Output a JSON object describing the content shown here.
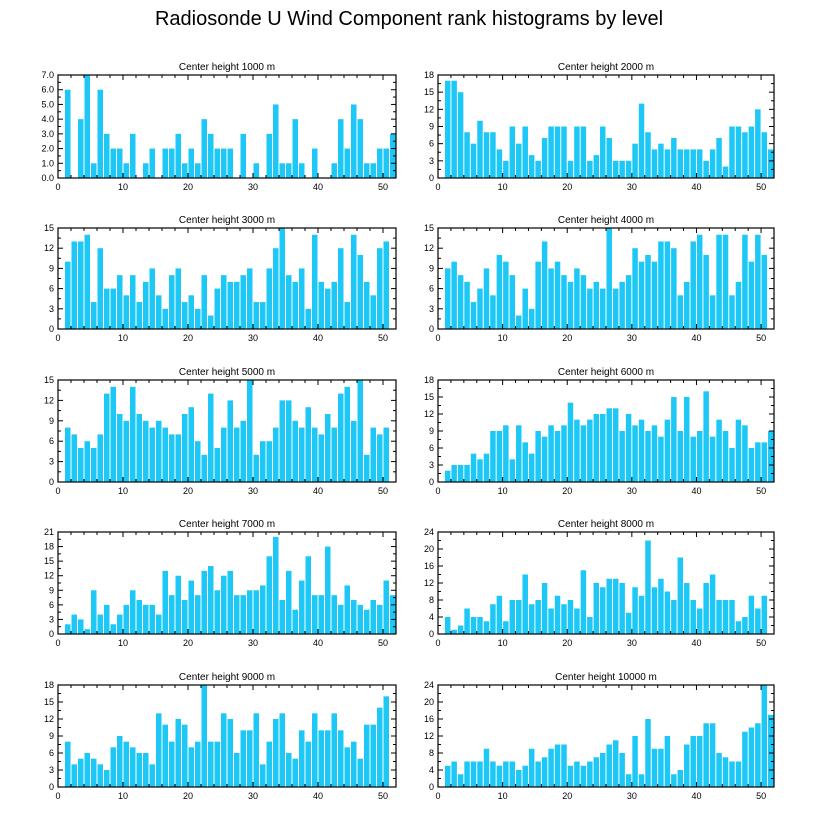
{
  "title": "Radiosonde U Wind Component rank histograms by level",
  "bar_color": "#1ec8f6",
  "chart_data": [
    {
      "type": "bar",
      "title": "Center height 1000 m",
      "xlim": [
        0,
        52
      ],
      "ylim": [
        0,
        7
      ],
      "yticks": [
        0,
        1,
        2,
        3,
        4,
        5,
        6,
        7
      ],
      "ytick_labels": [
        "0.0",
        "1.0",
        "2.0",
        "3.0",
        "4.0",
        "5.0",
        "6.0",
        "7.0"
      ],
      "xticks": [
        0,
        10,
        20,
        30,
        40,
        50
      ],
      "x": [
        0,
        1,
        2,
        3,
        4,
        5,
        6,
        7,
        8,
        9,
        10,
        11,
        12,
        13,
        14,
        15,
        16,
        17,
        18,
        19,
        20,
        21,
        22,
        23,
        24,
        25,
        26,
        27,
        28,
        29,
        30,
        31,
        32,
        33,
        34,
        35,
        36,
        37,
        38,
        39,
        40,
        41,
        42,
        43,
        44,
        45,
        46,
        47,
        48,
        49,
        50,
        51
      ],
      "values": [
        0,
        6,
        0,
        4,
        7,
        1,
        6,
        3,
        2,
        2,
        1,
        3,
        0,
        1,
        2,
        0,
        2,
        2,
        3,
        1,
        2,
        1,
        4,
        3,
        2,
        2,
        2,
        0,
        3,
        0,
        1,
        0,
        3,
        5,
        1,
        1,
        4,
        1,
        0,
        2,
        0,
        0,
        1,
        4,
        2,
        5,
        4,
        1,
        1,
        2,
        2,
        3
      ]
    },
    {
      "type": "bar",
      "title": "Center height 2000 m",
      "xlim": [
        0,
        52
      ],
      "ylim": [
        0,
        18
      ],
      "yticks": [
        0,
        3,
        6,
        9,
        12,
        15,
        18
      ],
      "ytick_labels": [
        "0",
        "3",
        "6",
        "9",
        "12",
        "15",
        "18"
      ],
      "xticks": [
        0,
        10,
        20,
        30,
        40,
        50
      ],
      "values": [
        0,
        17,
        17,
        15,
        8,
        6,
        10,
        8,
        8,
        5,
        3,
        9,
        6,
        9,
        4,
        3,
        7,
        9,
        9,
        9,
        3,
        9,
        9,
        3,
        4,
        9,
        7,
        3,
        3,
        3,
        6,
        13,
        8,
        5,
        6,
        5,
        7,
        5,
        5,
        5,
        5,
        3,
        5,
        7,
        2,
        9,
        9,
        8,
        9,
        12,
        8,
        5
      ]
    },
    {
      "type": "bar",
      "title": "Center height 3000 m",
      "xlim": [
        0,
        52
      ],
      "ylim": [
        0,
        15
      ],
      "yticks": [
        0,
        3,
        6,
        9,
        12,
        15
      ],
      "ytick_labels": [
        "0",
        "3",
        "6",
        "9",
        "12",
        "15"
      ],
      "xticks": [
        0,
        10,
        20,
        30,
        40,
        50
      ],
      "values": [
        0,
        10,
        13,
        13,
        14,
        4,
        12,
        6,
        6,
        8,
        5,
        8,
        4,
        7,
        9,
        5,
        3,
        8,
        9,
        4,
        5,
        3,
        8,
        2,
        6,
        8,
        7,
        7,
        8,
        9,
        4,
        4,
        9,
        12,
        15,
        8,
        7,
        9,
        3,
        14,
        7,
        6,
        7,
        12,
        4,
        14,
        11,
        7,
        5,
        12,
        13,
        0
      ]
    },
    {
      "type": "bar",
      "title": "Center height 4000 m",
      "xlim": [
        0,
        52
      ],
      "ylim": [
        0,
        15
      ],
      "yticks": [
        0,
        3,
        6,
        9,
        12,
        15
      ],
      "ytick_labels": [
        "0",
        "3",
        "6",
        "9",
        "12",
        "15"
      ],
      "xticks": [
        0,
        10,
        20,
        30,
        40,
        50
      ],
      "values": [
        0,
        9,
        10,
        8,
        7,
        4,
        6,
        9,
        5,
        11,
        10,
        8,
        2,
        6,
        3,
        10,
        13,
        9,
        10,
        8,
        7,
        9,
        8,
        6,
        7,
        6,
        15,
        6,
        7,
        8,
        12,
        10,
        11,
        10,
        13,
        13,
        12,
        5,
        7,
        13,
        14,
        11,
        5,
        14,
        14,
        5,
        7,
        14,
        10,
        14,
        11,
        0
      ]
    },
    {
      "type": "bar",
      "title": "Center height 5000 m",
      "xlim": [
        0,
        52
      ],
      "ylim": [
        0,
        15
      ],
      "yticks": [
        0,
        3,
        6,
        9,
        12,
        15
      ],
      "ytick_labels": [
        "0",
        "3",
        "6",
        "9",
        "12",
        "15"
      ],
      "xticks": [
        0,
        10,
        20,
        30,
        40,
        50
      ],
      "values": [
        0,
        8,
        7,
        5,
        6,
        5,
        7,
        13,
        14,
        10,
        9,
        14,
        10,
        9,
        8,
        9,
        8,
        7,
        7,
        10,
        11,
        6,
        4,
        13,
        5,
        8,
        12,
        8,
        9,
        15,
        4,
        6,
        6,
        8,
        12,
        12,
        9,
        8,
        11,
        8,
        7,
        10,
        8,
        13,
        14,
        9,
        15,
        4,
        8,
        7,
        8,
        0
      ]
    },
    {
      "type": "bar",
      "title": "Center height 6000 m",
      "xlim": [
        0,
        52
      ],
      "ylim": [
        0,
        18
      ],
      "yticks": [
        0,
        3,
        6,
        9,
        12,
        15,
        18
      ],
      "ytick_labels": [
        "0",
        "3",
        "6",
        "9",
        "12",
        "15",
        "18"
      ],
      "xticks": [
        0,
        10,
        20,
        30,
        40,
        50
      ],
      "values": [
        0,
        2,
        3,
        3,
        3,
        5,
        4,
        5,
        9,
        9,
        10,
        4,
        10,
        7,
        5,
        9,
        8,
        10,
        9,
        10,
        14,
        11,
        10,
        11,
        12,
        12,
        13,
        13,
        9,
        12,
        10,
        11,
        9,
        10,
        8,
        11,
        15,
        9,
        15,
        8,
        9,
        16,
        8,
        11,
        9,
        6,
        11,
        10,
        6,
        7,
        7,
        9
      ]
    },
    {
      "type": "bar",
      "title": "Center height 7000 m",
      "xlim": [
        0,
        52
      ],
      "ylim": [
        0,
        21
      ],
      "yticks": [
        0,
        3,
        6,
        9,
        12,
        15,
        18,
        21
      ],
      "ytick_labels": [
        "0",
        "3",
        "6",
        "9",
        "12",
        "15",
        "18",
        "21"
      ],
      "xticks": [
        0,
        10,
        20,
        30,
        40,
        50
      ],
      "values": [
        0,
        2,
        4,
        3,
        1,
        9,
        4,
        6,
        2,
        4,
        6,
        9,
        7,
        6,
        6,
        4,
        13,
        8,
        12,
        7,
        11,
        8,
        13,
        14,
        9,
        12,
        13,
        8,
        8,
        9,
        9,
        10,
        16,
        20,
        7,
        13,
        5,
        11,
        16,
        8,
        8,
        18,
        8,
        6,
        10,
        7,
        6,
        5,
        7,
        6,
        11,
        8
      ]
    },
    {
      "type": "bar",
      "title": "Center height 8000 m",
      "xlim": [
        0,
        52
      ],
      "ylim": [
        0,
        24
      ],
      "yticks": [
        0,
        4,
        8,
        12,
        16,
        20,
        24
      ],
      "ytick_labels": [
        "0",
        "4",
        "8",
        "12",
        "16",
        "20",
        "24"
      ],
      "xticks": [
        0,
        10,
        20,
        30,
        40,
        50
      ],
      "values": [
        0,
        4,
        1,
        2,
        6,
        4,
        4,
        3,
        7,
        9,
        3,
        8,
        8,
        14,
        7,
        8,
        12,
        6,
        9,
        7,
        8,
        6,
        15,
        4,
        12,
        11,
        13,
        13,
        12,
        5,
        11,
        9,
        22,
        11,
        13,
        10,
        8,
        18,
        12,
        8,
        6,
        12,
        14,
        8,
        8,
        8,
        3,
        4,
        9,
        6,
        9,
        0
      ]
    },
    {
      "type": "bar",
      "title": "Center height 9000 m",
      "xlim": [
        0,
        52
      ],
      "ylim": [
        0,
        18
      ],
      "yticks": [
        0,
        3,
        6,
        9,
        12,
        15,
        18
      ],
      "ytick_labels": [
        "0",
        "3",
        "6",
        "9",
        "12",
        "15",
        "18"
      ],
      "xticks": [
        0,
        10,
        20,
        30,
        40,
        50
      ],
      "values": [
        0,
        8,
        4,
        5,
        6,
        5,
        4,
        3,
        7,
        9,
        8,
        7,
        6,
        6,
        4,
        13,
        11,
        8,
        12,
        11,
        7,
        8,
        18,
        8,
        8,
        13,
        12,
        6,
        10,
        10,
        13,
        4,
        8,
        12,
        13,
        6,
        5,
        10,
        8,
        13,
        10,
        10,
        13,
        10,
        7,
        8,
        5,
        11,
        11,
        14,
        16,
        0
      ]
    },
    {
      "type": "bar",
      "title": "Center height 10000 m",
      "xlim": [
        0,
        52
      ],
      "ylim": [
        0,
        24
      ],
      "yticks": [
        0,
        4,
        8,
        12,
        16,
        20,
        24
      ],
      "ytick_labels": [
        "0",
        "4",
        "8",
        "12",
        "16",
        "20",
        "24"
      ],
      "xticks": [
        0,
        10,
        20,
        30,
        40,
        50
      ],
      "values": [
        0,
        5,
        6,
        3,
        6,
        6,
        6,
        9,
        6,
        5,
        6,
        6,
        4,
        5,
        9,
        6,
        7,
        9,
        10,
        10,
        5,
        6,
        5,
        6,
        7,
        8,
        10,
        11,
        8,
        3,
        12,
        3,
        16,
        9,
        9,
        12,
        3,
        4,
        10,
        12,
        12,
        15,
        15,
        8,
        7,
        6,
        6,
        13,
        14,
        15,
        24,
        17
      ]
    }
  ]
}
